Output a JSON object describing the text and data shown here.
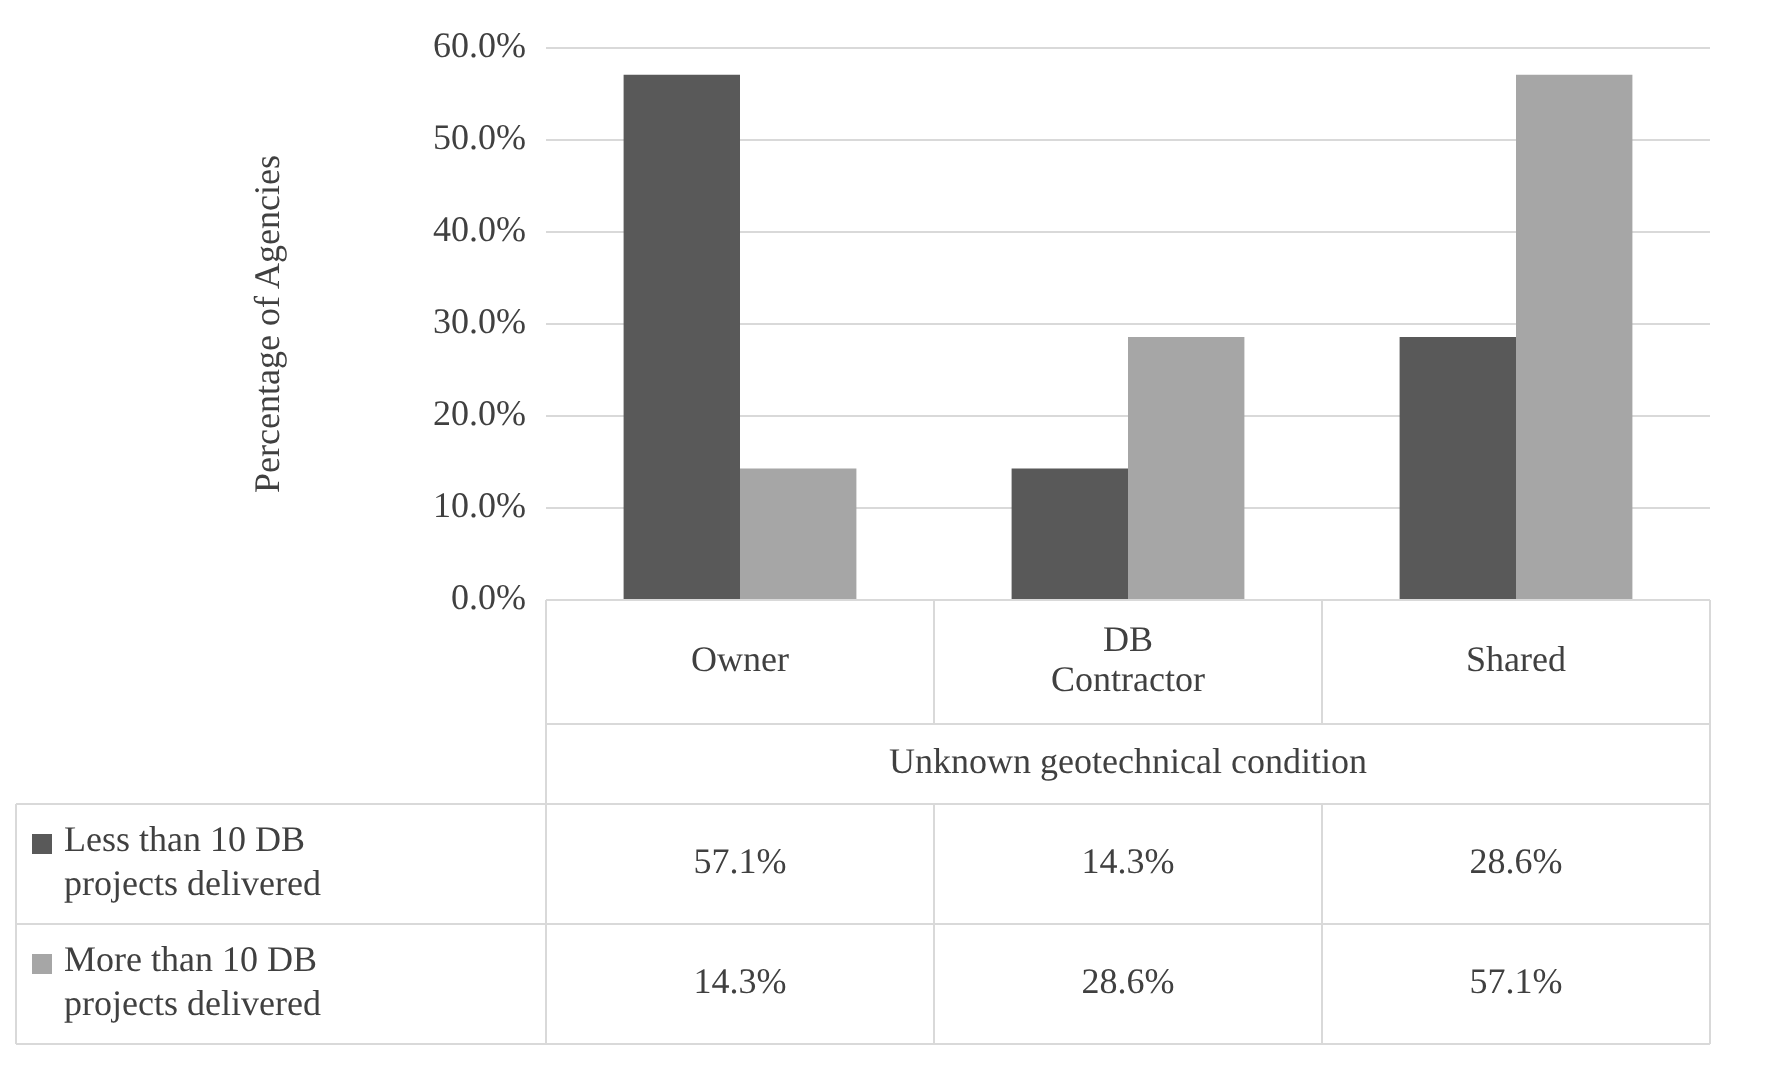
{
  "chart_data": {
    "type": "bar",
    "ylabel": "Percentage of Agencies",
    "xlabel": "Unknown geotechnical condition",
    "categories": [
      "Owner",
      "DB Contractor",
      "Shared"
    ],
    "series": [
      {
        "name": "Less than 10 DB projects delivered",
        "color": "#595959",
        "values": [
          57.1,
          14.3,
          28.6
        ],
        "value_labels": [
          "57.1%",
          "14.3%",
          "28.6%"
        ]
      },
      {
        "name": "More than 10 DB projects delivered",
        "color": "#a6a6a6",
        "values": [
          14.3,
          28.6,
          57.1
        ],
        "value_labels": [
          "14.3%",
          "28.6%",
          "57.1%"
        ]
      }
    ],
    "ylim": [
      0,
      60
    ],
    "yticks": [
      {
        "value": 0,
        "label": "0.0%"
      },
      {
        "value": 10,
        "label": "10.0%"
      },
      {
        "value": 20,
        "label": "20.0%"
      },
      {
        "value": 30,
        "label": "30.0%"
      },
      {
        "value": 40,
        "label": "40.0%"
      },
      {
        "value": 50,
        "label": "50.0%"
      },
      {
        "value": 60,
        "label": "60.0%"
      }
    ],
    "grid": "y",
    "legend": "bottom left"
  }
}
